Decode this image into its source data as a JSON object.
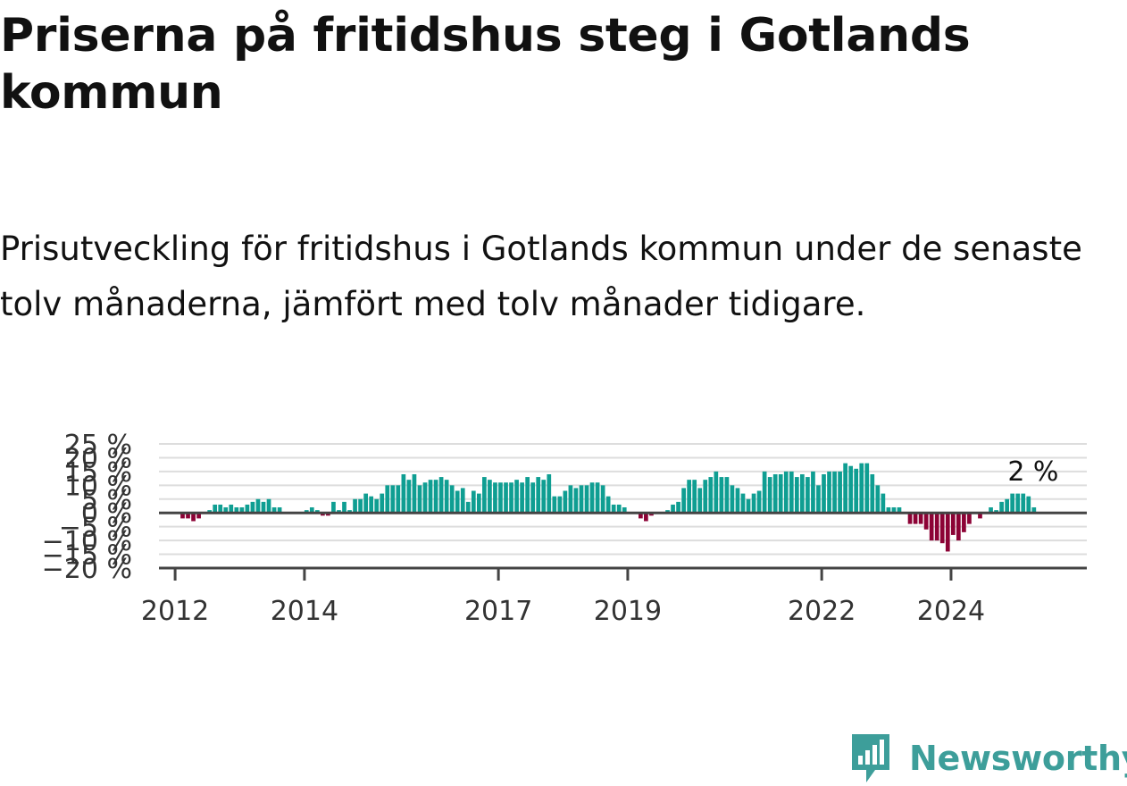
{
  "header": {
    "title": "Priserna på fritidshus steg i Gotlands kommun",
    "subtitle": "Prisutveckling för fritidshus i Gotlands kommun under de senaste tolv månaderna, jämfört med tolv månader tidigare."
  },
  "brand": {
    "name": "Newsworthy",
    "icon": "bar-chart-logo-icon",
    "color": "#3d9e9a"
  },
  "colors": {
    "positive": "#0f9e92",
    "negative": "#8c0235",
    "grid": "#dddddd",
    "zero_line": "#444444"
  },
  "chart_data": {
    "type": "bar",
    "title": "",
    "xlabel": "",
    "ylabel": "",
    "ylim": [
      -20,
      25
    ],
    "y_ticks": [
      {
        "value": 25,
        "label": "25 %"
      },
      {
        "value": 20,
        "label": "20 %"
      },
      {
        "value": 15,
        "label": "15 %"
      },
      {
        "value": 10,
        "label": "10 %"
      },
      {
        "value": 5,
        "label": "5 %"
      },
      {
        "value": 0,
        "label": "0 %"
      },
      {
        "value": -5,
        "label": "−5 %"
      },
      {
        "value": -10,
        "label": "−10 %"
      },
      {
        "value": -15,
        "label": "−15 %"
      },
      {
        "value": -20,
        "label": "−20 %"
      }
    ],
    "x_ticks": [
      {
        "year": 2012,
        "label": "2012"
      },
      {
        "year": 2014,
        "label": "2014"
      },
      {
        "year": 2017,
        "label": "2017"
      },
      {
        "year": 2019,
        "label": "2019"
      },
      {
        "year": 2022,
        "label": "2022"
      },
      {
        "year": 2024,
        "label": "2024"
      }
    ],
    "start": "2012-01",
    "frequency": "monthly",
    "values": [
      0,
      -2,
      -2,
      -3,
      -2,
      0,
      1,
      3,
      3,
      2,
      3,
      2,
      2,
      3,
      4,
      5,
      4,
      5,
      2,
      2,
      0,
      0,
      0,
      0,
      1,
      2,
      1,
      -1,
      -1,
      4,
      1,
      4,
      1,
      5,
      5,
      7,
      6,
      5,
      7,
      10,
      10,
      10,
      14,
      12,
      14,
      10,
      11,
      12,
      12,
      13,
      12,
      10,
      8,
      9,
      4,
      8,
      7,
      13,
      12,
      11,
      11,
      11,
      11,
      12,
      11,
      13,
      11,
      13,
      12,
      14,
      6,
      6,
      8,
      10,
      9,
      10,
      10,
      11,
      11,
      10,
      6,
      3,
      3,
      2,
      0,
      0,
      -2,
      -3,
      -1,
      0,
      0,
      1,
      3,
      4,
      9,
      12,
      12,
      9,
      12,
      13,
      15,
      13,
      13,
      10,
      9,
      7,
      5,
      7,
      8,
      15,
      13,
      14,
      14,
      15,
      15,
      13,
      14,
      13,
      15,
      10,
      14,
      15,
      15,
      15,
      18,
      17,
      16,
      18,
      18,
      14,
      10,
      7,
      2,
      2,
      2,
      0,
      -4,
      -4,
      -4,
      -6,
      -10,
      -10,
      -11,
      -14,
      -8,
      -10,
      -7,
      -4,
      0,
      -2,
      0,
      2,
      1,
      4,
      5,
      7,
      7,
      7,
      6,
      2
    ],
    "annotation": {
      "text": "2 %",
      "value": 2
    }
  }
}
